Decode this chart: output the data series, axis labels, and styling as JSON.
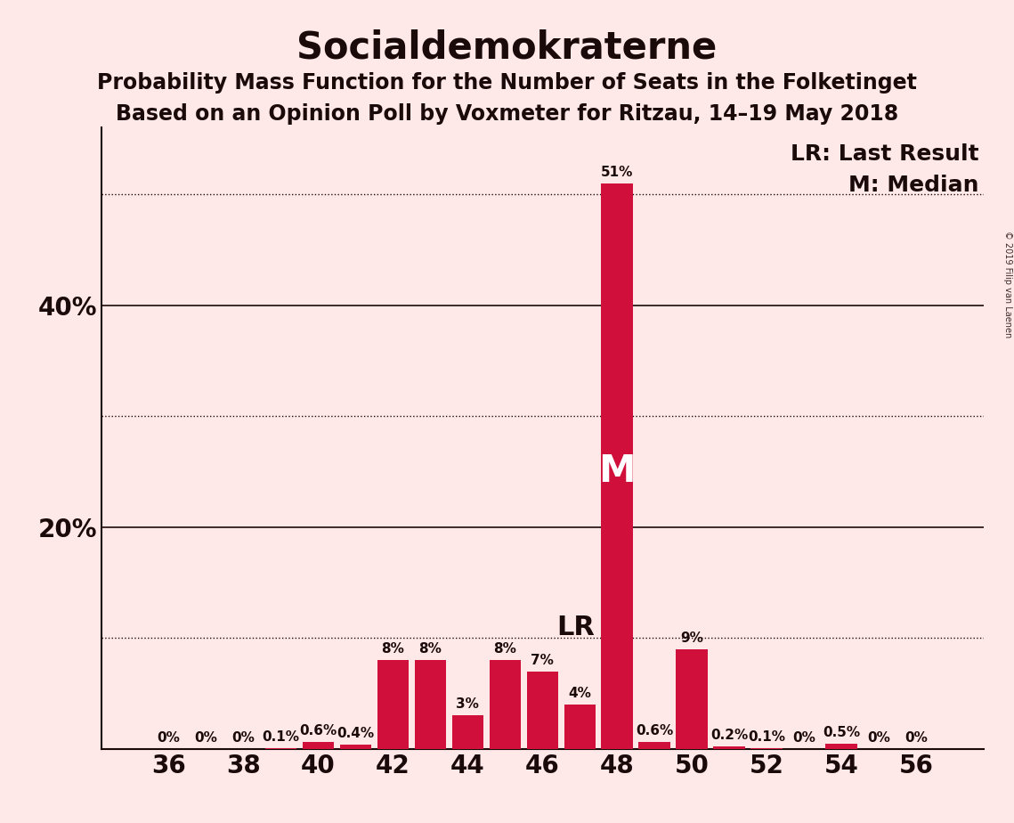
{
  "title": "Socialdemokraterne",
  "subtitle1": "Probability Mass Function for the Number of Seats in the Folketinget",
  "subtitle2": "Based on an Opinion Poll by Voxmeter for Ritzau, 14–19 May 2018",
  "watermark": "© 2019 Filip van Laenen",
  "seats": [
    36,
    37,
    38,
    39,
    40,
    41,
    42,
    43,
    44,
    45,
    46,
    47,
    48,
    49,
    50,
    51,
    52,
    53,
    54,
    55,
    56
  ],
  "probabilities": [
    0.0,
    0.0,
    0.0,
    0.1,
    0.6,
    0.4,
    8.0,
    8.0,
    3.0,
    8.0,
    7.0,
    4.0,
    51.0,
    0.6,
    9.0,
    0.2,
    0.1,
    0.0,
    0.5,
    0.0,
    0.0
  ],
  "bar_color": "#D0103A",
  "background_color": "#FFE8E8",
  "last_result_seat": 47,
  "median_seat": 48,
  "lr_label": "LR",
  "median_label": "M",
  "legend_lr": "LR: Last Result",
  "legend_m": "M: Median",
  "ytick_solid": [
    20,
    40
  ],
  "ytick_dotted": [
    10,
    30,
    50
  ],
  "ytick_labeled": [
    20,
    40
  ],
  "xtick_values": [
    36,
    38,
    40,
    42,
    44,
    46,
    48,
    50,
    52,
    54,
    56
  ],
  "ylim": [
    0,
    56
  ],
  "bar_label_fontsize": 11,
  "axis_tick_fontsize": 20,
  "title_fontsize": 30,
  "subtitle_fontsize": 17,
  "legend_fontsize": 18
}
